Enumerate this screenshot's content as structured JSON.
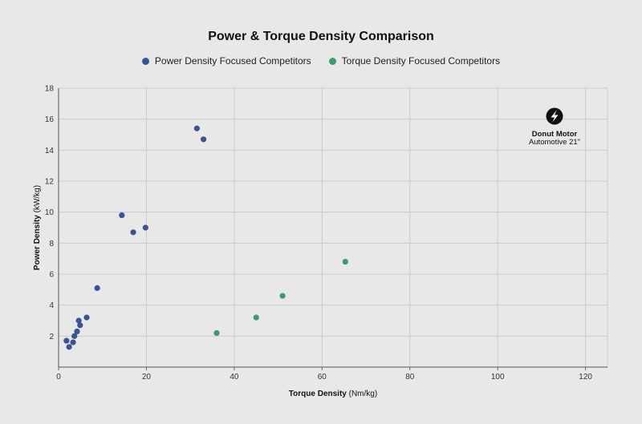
{
  "chart_data": {
    "type": "scatter",
    "title": "Power & Torque Density Comparison",
    "xlabel": "Torque Density",
    "xlabel_unit": "(Nm/kg)",
    "ylabel": "Power Density",
    "ylabel_unit": "(kW/kg)",
    "xlim": [
      0,
      125
    ],
    "ylim": [
      0,
      18
    ],
    "xticks": [
      0,
      20,
      40,
      60,
      80,
      100,
      120
    ],
    "yticks": [
      2,
      4,
      6,
      8,
      10,
      12,
      14,
      16,
      18
    ],
    "grid": true,
    "legend_position": "top-center",
    "series": [
      {
        "name": "Power Density Focused Competitors",
        "color": "#3b5396",
        "points": [
          {
            "x": 1.8,
            "y": 1.7
          },
          {
            "x": 2.4,
            "y": 1.3
          },
          {
            "x": 3.3,
            "y": 1.6
          },
          {
            "x": 3.6,
            "y": 2.0
          },
          {
            "x": 4.2,
            "y": 2.3
          },
          {
            "x": 4.6,
            "y": 3.0
          },
          {
            "x": 4.9,
            "y": 2.7
          },
          {
            "x": 6.4,
            "y": 3.2
          },
          {
            "x": 8.8,
            "y": 5.1
          },
          {
            "x": 14.4,
            "y": 9.8
          },
          {
            "x": 17.0,
            "y": 8.7
          },
          {
            "x": 19.8,
            "y": 9.0
          },
          {
            "x": 31.5,
            "y": 15.4
          },
          {
            "x": 33.0,
            "y": 14.7
          }
        ]
      },
      {
        "name": "Torque Density Focused Competitors",
        "color": "#3d9a6a",
        "points": [
          {
            "x": 36.0,
            "y": 2.2
          },
          {
            "x": 45.0,
            "y": 3.2
          },
          {
            "x": 51.0,
            "y": 4.6
          },
          {
            "x": 65.3,
            "y": 6.8
          }
        ]
      }
    ],
    "annotation": {
      "icon": "lightning-bolt-icon",
      "line1": "Donut Motor",
      "line2": "Automotive 21\""
    }
  }
}
